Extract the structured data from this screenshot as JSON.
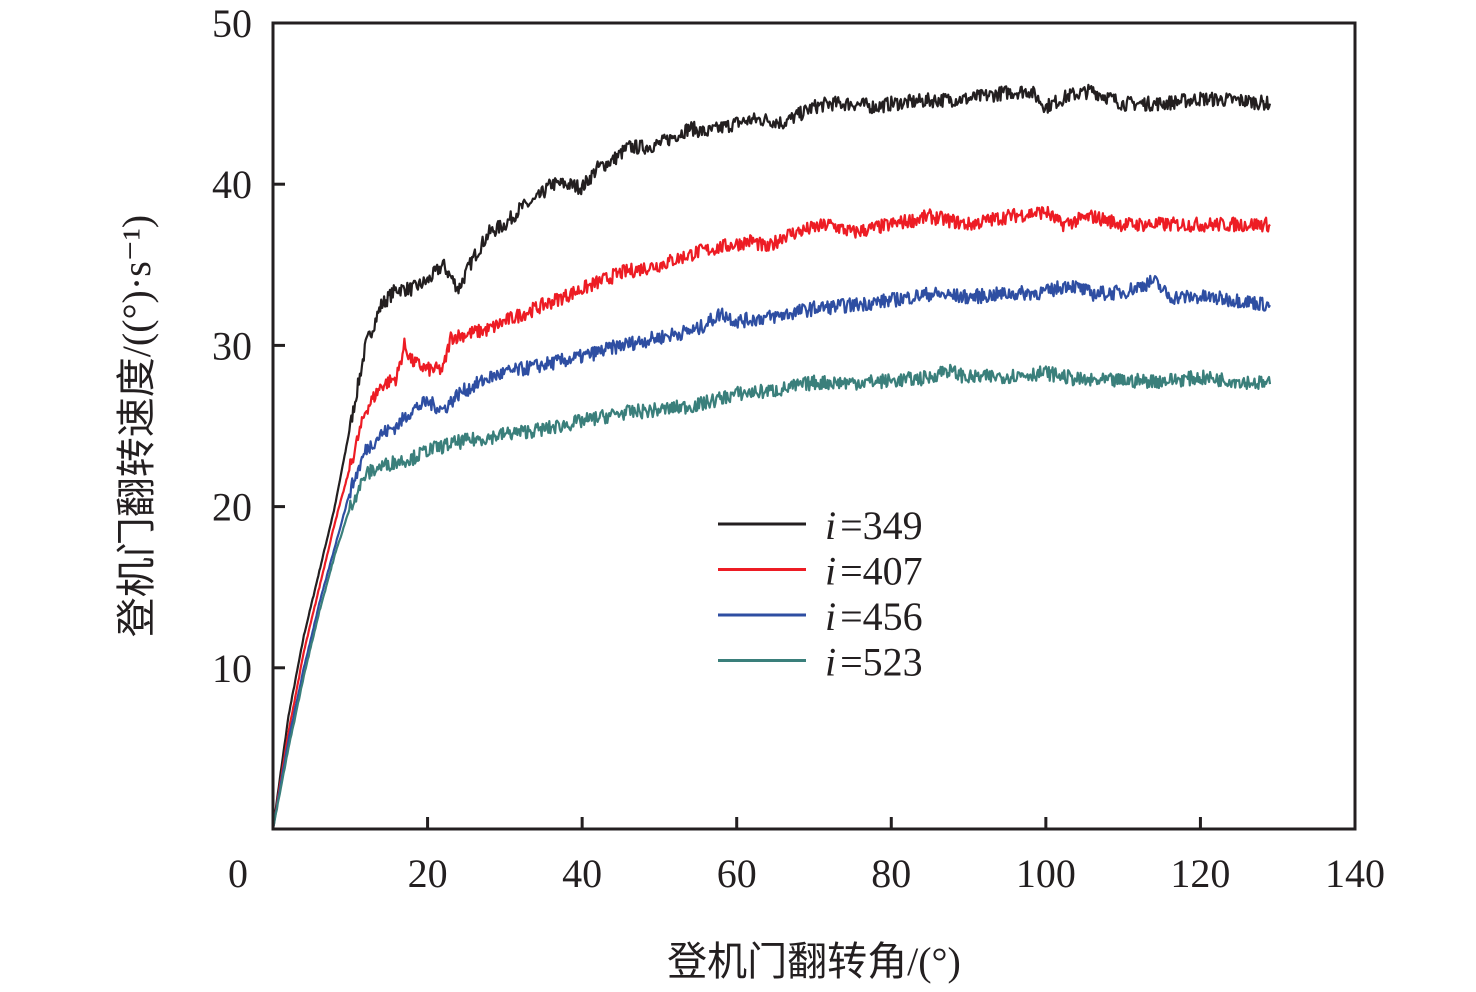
{
  "chart_data": {
    "type": "line",
    "title": "",
    "xlabel": "登机门翻转角/(°)",
    "ylabel": "登机门翻转速度/((°)·s⁻¹)",
    "xlim": [
      0,
      140
    ],
    "ylim": [
      0,
      50
    ],
    "xticks": [
      0,
      20,
      40,
      60,
      80,
      100,
      120,
      140
    ],
    "yticks": [
      10,
      20,
      30,
      40,
      50
    ],
    "grid": false,
    "legend_position": "center",
    "series": [
      {
        "name": "i=349",
        "label_var": "i",
        "label_val": "=349",
        "color": "#231f20",
        "x": [
          0,
          2,
          4,
          6,
          8,
          10,
          12,
          14,
          16,
          18,
          20,
          22,
          24,
          26,
          28,
          30,
          32,
          34,
          36,
          38,
          40,
          42,
          44,
          46,
          48,
          50,
          52,
          54,
          56,
          58,
          60,
          62,
          64,
          66,
          68,
          70,
          72,
          75,
          78,
          80,
          85,
          90,
          95,
          98,
          100,
          103,
          106,
          110,
          115,
          120,
          125,
          129
        ],
        "y": [
          0,
          7,
          12,
          16,
          20,
          25,
          30,
          32.5,
          33.5,
          33.5,
          34,
          35,
          33.5,
          35.5,
          37,
          37.5,
          38.5,
          39,
          40,
          40,
          39.8,
          41,
          41.5,
          42.3,
          42.3,
          42.5,
          43,
          43.5,
          43.2,
          43.5,
          43.8,
          44,
          44,
          43.8,
          44.3,
          44.8,
          45,
          45,
          44.8,
          45,
          45.2,
          45.3,
          45.7,
          45.8,
          44.8,
          45.5,
          45.8,
          45,
          45,
          45.3,
          45.2,
          45
        ]
      },
      {
        "name": "i=407",
        "label_var": "i",
        "label_val": "=407",
        "color": "#ed1c24",
        "x": [
          0,
          2,
          4,
          6,
          8,
          10,
          12,
          14,
          16,
          17,
          18,
          20,
          22,
          23,
          26,
          28,
          30,
          35,
          40,
          45,
          50,
          55,
          60,
          62,
          64,
          66,
          70,
          72,
          75,
          80,
          85,
          90,
          95,
          100,
          102,
          106,
          110,
          115,
          120,
          125,
          129
        ],
        "y": [
          0,
          6,
          11,
          15,
          19,
          22.5,
          26,
          27.5,
          28,
          30,
          29,
          28.5,
          28.5,
          30.5,
          30.8,
          31,
          31.5,
          32.5,
          33.5,
          34.5,
          35,
          35.8,
          36.3,
          36.5,
          36,
          36.8,
          37.3,
          37.5,
          37,
          37.5,
          38,
          37.5,
          38,
          38.3,
          37.5,
          38,
          37.5,
          37.5,
          37.5,
          37.5,
          37.5
        ]
      },
      {
        "name": "i=456",
        "label_var": "i",
        "label_val": "=456",
        "color": "#2e4ea2",
        "x": [
          0,
          2,
          4,
          6,
          8,
          10,
          12,
          14,
          16,
          18,
          20,
          22,
          24,
          26,
          28,
          30,
          35,
          40,
          45,
          50,
          55,
          58,
          60,
          65,
          70,
          75,
          80,
          85,
          90,
          95,
          100,
          103,
          106,
          110,
          114,
          116,
          120,
          125,
          129
        ],
        "y": [
          0,
          5.5,
          10,
          14,
          17.5,
          21,
          23.5,
          24.5,
          25,
          26,
          26.5,
          26,
          27,
          27.5,
          28,
          28.3,
          28.8,
          29.3,
          30,
          30.5,
          31,
          32,
          31.5,
          31.8,
          32.3,
          32.5,
          32.8,
          33.2,
          33,
          33.2,
          33.3,
          33.8,
          33.2,
          33.3,
          34,
          33,
          33,
          32.8,
          32.5
        ]
      },
      {
        "name": "i=523",
        "label_var": "i",
        "label_val": "=523",
        "color": "#3a7f7b",
        "x": [
          0,
          2,
          4,
          6,
          8,
          10,
          12,
          14,
          16,
          18,
          20,
          24,
          28,
          30,
          35,
          40,
          45,
          50,
          55,
          60,
          65,
          70,
          75,
          80,
          85,
          87,
          90,
          95,
          100,
          105,
          110,
          115,
          120,
          125,
          129
        ],
        "y": [
          0,
          5,
          9.5,
          13.5,
          17,
          20,
          22,
          22.5,
          22.8,
          23,
          23.5,
          24,
          24.3,
          24.5,
          24.8,
          25.3,
          25.8,
          26,
          26.3,
          27,
          27.2,
          27.7,
          27.7,
          27.8,
          28,
          28.5,
          28,
          28.1,
          28.3,
          27.8,
          27.8,
          27.8,
          28,
          27.8,
          27.6
        ]
      }
    ]
  }
}
